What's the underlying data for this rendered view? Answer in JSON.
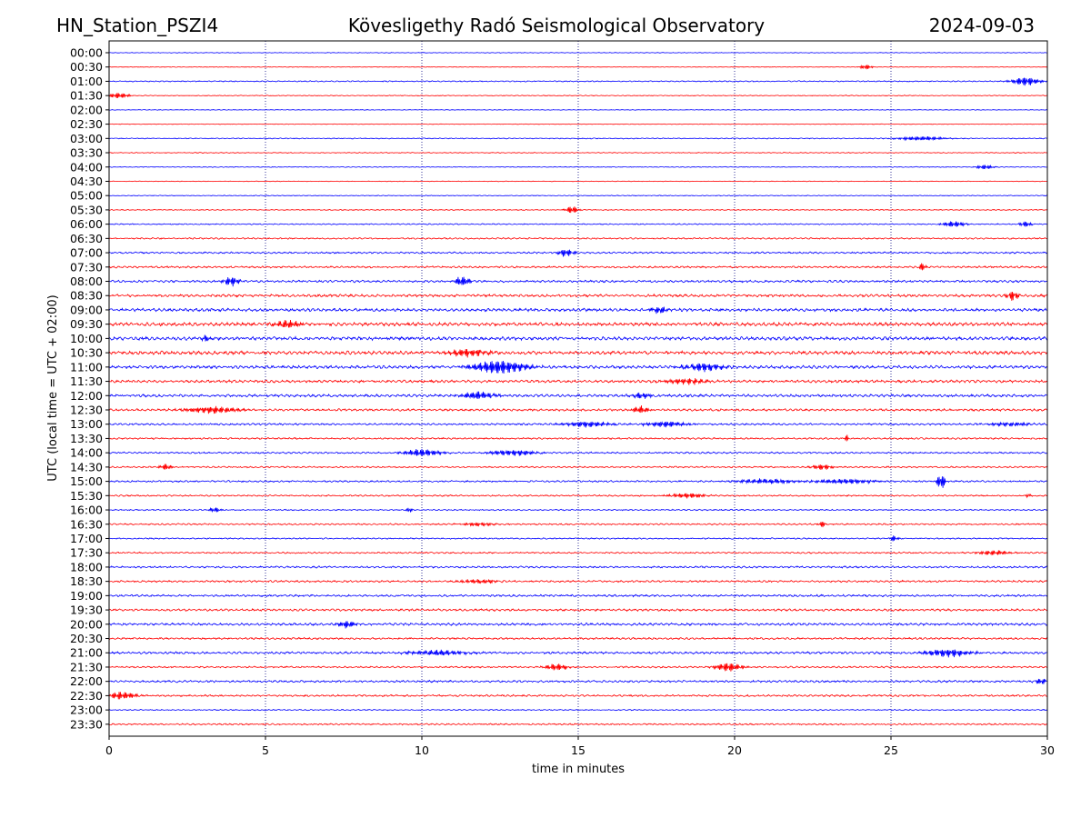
{
  "chart_data": {
    "type": "line",
    "title": "Kövesligethy Radó Seismological Observatory",
    "title_left": "HN_Station_PSZI4",
    "title_right": "2024-09-03",
    "xlabel": "time in minutes",
    "ylabel": "UTC (local time = UTC + 02:00)",
    "xlim": [
      0,
      30
    ],
    "xticks": [
      0,
      5,
      10,
      15,
      20,
      25,
      30
    ],
    "grid": "vertical dotted lines at x = 5, 10, 15, 20, 25",
    "colors": {
      "even_rows": "#0000ff",
      "odd_rows": "#ff0000",
      "grid": "#000080"
    },
    "rows": [
      "00:00",
      "00:30",
      "01:00",
      "01:30",
      "02:00",
      "02:30",
      "03:00",
      "03:30",
      "04:00",
      "04:30",
      "05:00",
      "05:30",
      "06:00",
      "06:30",
      "07:00",
      "07:30",
      "08:00",
      "08:30",
      "09:00",
      "09:30",
      "10:00",
      "10:30",
      "11:00",
      "11:30",
      "12:00",
      "12:30",
      "13:00",
      "13:30",
      "14:00",
      "14:30",
      "15:00",
      "15:30",
      "16:00",
      "16:30",
      "17:00",
      "17:30",
      "18:00",
      "18:30",
      "19:00",
      "19:30",
      "20:00",
      "20:30",
      "21:00",
      "21:30",
      "22:00",
      "22:30",
      "23:00",
      "23:30"
    ],
    "noise": [
      0.3,
      0.3,
      0.6,
      0.4,
      0.3,
      0.3,
      0.5,
      0.4,
      0.4,
      0.3,
      0.4,
      0.5,
      0.6,
      0.8,
      0.9,
      1.0,
      1.2,
      1.4,
      1.6,
      1.8,
      1.8,
      1.8,
      1.6,
      1.4,
      1.4,
      1.2,
      1.0,
      0.9,
      0.9,
      0.8,
      0.9,
      0.8,
      0.7,
      0.8,
      0.7,
      0.8,
      1.0,
      1.0,
      1.1,
      1.2,
      1.3,
      1.0,
      1.2,
      0.9,
      1.1,
      1.0,
      0.6,
      0.8
    ],
    "events": [
      {
        "row": 1,
        "t": 24.2,
        "amp": 2.5,
        "dur": 0.3
      },
      {
        "row": 2,
        "t": 29.3,
        "amp": 4.5,
        "dur": 0.7
      },
      {
        "row": 3,
        "t": 0.3,
        "amp": 3,
        "dur": 0.5
      },
      {
        "row": 6,
        "t": 26.0,
        "amp": 2,
        "dur": 1.2
      },
      {
        "row": 8,
        "t": 28.0,
        "amp": 2.5,
        "dur": 0.4
      },
      {
        "row": 11,
        "t": 14.8,
        "amp": 4,
        "dur": 0.3
      },
      {
        "row": 12,
        "t": 27.0,
        "amp": 3,
        "dur": 0.6
      },
      {
        "row": 12,
        "t": 29.3,
        "amp": 3,
        "dur": 0.3
      },
      {
        "row": 14,
        "t": 14.6,
        "amp": 4,
        "dur": 0.4
      },
      {
        "row": 15,
        "t": 26.0,
        "amp": 3.5,
        "dur": 0.2
      },
      {
        "row": 16,
        "t": 3.9,
        "amp": 5,
        "dur": 0.4
      },
      {
        "row": 16,
        "t": 11.3,
        "amp": 5,
        "dur": 0.4
      },
      {
        "row": 17,
        "t": 28.9,
        "amp": 5,
        "dur": 0.3
      },
      {
        "row": 18,
        "t": 17.6,
        "amp": 3.5,
        "dur": 0.5
      },
      {
        "row": 19,
        "t": 5.7,
        "amp": 4,
        "dur": 0.6
      },
      {
        "row": 20,
        "t": 3.1,
        "amp": 3.5,
        "dur": 0.2
      },
      {
        "row": 21,
        "t": 11.5,
        "amp": 4,
        "dur": 1.0
      },
      {
        "row": 22,
        "t": 12.5,
        "amp": 7,
        "dur": 1.4
      },
      {
        "row": 22,
        "t": 19.0,
        "amp": 4,
        "dur": 1.0
      },
      {
        "row": 23,
        "t": 18.5,
        "amp": 3,
        "dur": 1.2
      },
      {
        "row": 24,
        "t": 11.8,
        "amp": 4,
        "dur": 0.8
      },
      {
        "row": 24,
        "t": 17.0,
        "amp": 3,
        "dur": 0.5
      },
      {
        "row": 25,
        "t": 3.3,
        "amp": 3.5,
        "dur": 1.5
      },
      {
        "row": 25,
        "t": 17.0,
        "amp": 4,
        "dur": 0.4
      },
      {
        "row": 26,
        "t": 15.3,
        "amp": 3,
        "dur": 1.2
      },
      {
        "row": 26,
        "t": 17.8,
        "amp": 3,
        "dur": 1.0
      },
      {
        "row": 26,
        "t": 28.8,
        "amp": 2,
        "dur": 1.0
      },
      {
        "row": 27,
        "t": 23.6,
        "amp": 4,
        "dur": 0.1
      },
      {
        "row": 28,
        "t": 10.0,
        "amp": 3.5,
        "dur": 1.0
      },
      {
        "row": 28,
        "t": 12.9,
        "amp": 3,
        "dur": 1.2
      },
      {
        "row": 29,
        "t": 1.8,
        "amp": 3,
        "dur": 0.3
      },
      {
        "row": 29,
        "t": 22.8,
        "amp": 3,
        "dur": 0.5
      },
      {
        "row": 30,
        "t": 21.0,
        "amp": 2.5,
        "dur": 1.5
      },
      {
        "row": 30,
        "t": 23.5,
        "amp": 2.5,
        "dur": 1.5
      },
      {
        "row": 30,
        "t": 26.6,
        "amp": 9,
        "dur": 0.2
      },
      {
        "row": 31,
        "t": 18.5,
        "amp": 2.5,
        "dur": 1.0
      },
      {
        "row": 31,
        "t": 29.4,
        "amp": 3,
        "dur": 0.1
      },
      {
        "row": 32,
        "t": 3.4,
        "amp": 2.5,
        "dur": 0.3
      },
      {
        "row": 32,
        "t": 9.6,
        "amp": 5,
        "dur": 0.1
      },
      {
        "row": 33,
        "t": 11.8,
        "amp": 2,
        "dur": 0.8
      },
      {
        "row": 33,
        "t": 22.8,
        "amp": 3,
        "dur": 0.2
      },
      {
        "row": 34,
        "t": 25.1,
        "amp": 3,
        "dur": 0.2
      },
      {
        "row": 35,
        "t": 28.3,
        "amp": 2.5,
        "dur": 0.8
      },
      {
        "row": 37,
        "t": 11.8,
        "amp": 2,
        "dur": 1.0
      },
      {
        "row": 40,
        "t": 7.6,
        "amp": 4,
        "dur": 0.4
      },
      {
        "row": 42,
        "t": 10.5,
        "amp": 2.5,
        "dur": 1.6
      },
      {
        "row": 42,
        "t": 26.8,
        "amp": 4,
        "dur": 1.2
      },
      {
        "row": 43,
        "t": 14.3,
        "amp": 3.5,
        "dur": 0.6
      },
      {
        "row": 43,
        "t": 19.8,
        "amp": 4.5,
        "dur": 0.7
      },
      {
        "row": 44,
        "t": 29.8,
        "amp": 3.5,
        "dur": 0.3
      },
      {
        "row": 45,
        "t": 0.4,
        "amp": 4,
        "dur": 0.7
      }
    ]
  }
}
